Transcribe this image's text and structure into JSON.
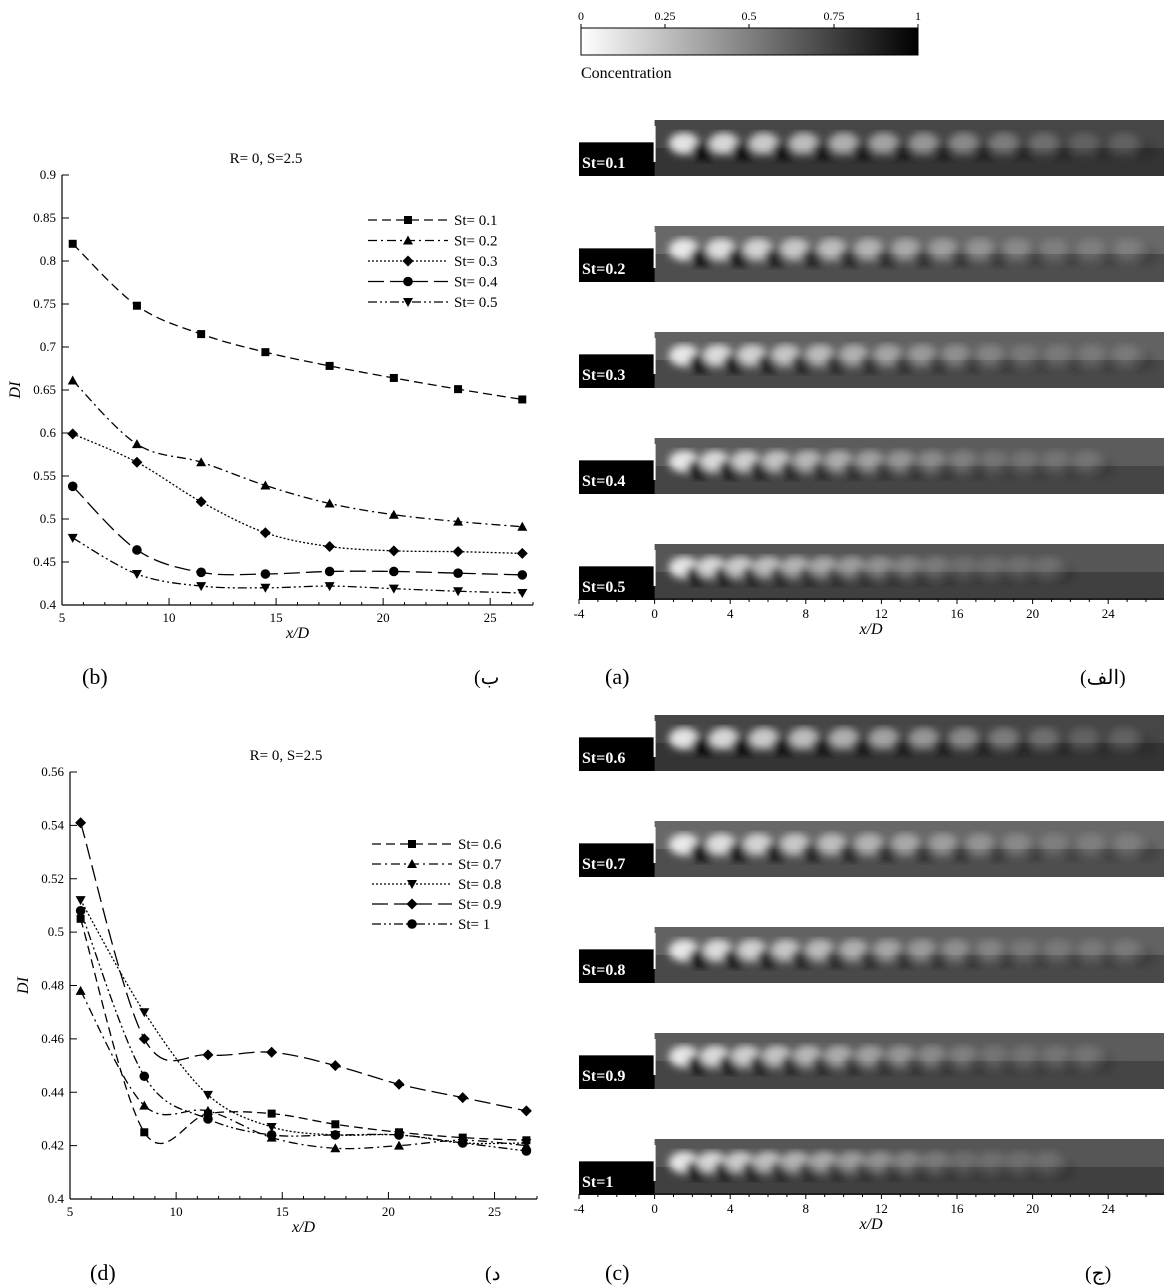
{
  "colorbar": {
    "ticks": [
      "0",
      "0.25",
      "0.5",
      "0.75",
      "1"
    ],
    "label": "Concentration"
  },
  "panel_labels": {
    "b": "(b)",
    "b_ar": "(ب",
    "a": "(a)",
    "a_ar": "(الف)",
    "d": "(d)",
    "d_ar": "(د",
    "c": "(c)",
    "c_ar": "(ج)"
  },
  "contour_axis": {
    "ticks": [
      "-4",
      "0",
      "4",
      "8",
      "12",
      "16",
      "20",
      "24"
    ],
    "xlabel": "x/D"
  },
  "contours_top": [
    "St=0.1",
    "St=0.2",
    "St=0.3",
    "St=0.4",
    "St=0.5"
  ],
  "contours_bottom": [
    "St=0.6",
    "St=0.7",
    "St=0.8",
    "St=0.9",
    "St=1"
  ],
  "chart_data": [
    {
      "type": "line",
      "title": "R= 0, S=2.5",
      "xlabel": "x/D",
      "ylabel": "DI",
      "xlim": [
        5,
        27
      ],
      "ylim": [
        0.4,
        0.9
      ],
      "x_ticks": [
        5,
        10,
        15,
        20,
        25
      ],
      "y_ticks": [
        "0.4",
        "0.45",
        "0.5",
        "0.55",
        "0.6",
        "0.65",
        "0.7",
        "0.75",
        "0.8",
        "0.85",
        "0.9"
      ],
      "x": [
        5.5,
        8.5,
        11.5,
        14.5,
        17.5,
        20.5,
        23.5,
        26.5
      ],
      "legend_position": "top-right",
      "series": [
        {
          "name": "St= 0.1",
          "marker": "square",
          "dash": "dashed",
          "values": [
            0.82,
            0.748,
            0.715,
            0.694,
            0.678,
            0.664,
            0.651,
            0.639
          ]
        },
        {
          "name": "St= 0.2",
          "marker": "triangle-up",
          "dash": "dashdot",
          "values": [
            0.661,
            0.587,
            0.566,
            0.539,
            0.518,
            0.505,
            0.497,
            0.491
          ]
        },
        {
          "name": "St= 0.3",
          "marker": "diamond",
          "dash": "dotted",
          "values": [
            0.599,
            0.566,
            0.52,
            0.484,
            0.468,
            0.463,
            0.462,
            0.46
          ]
        },
        {
          "name": "St= 0.4",
          "marker": "circle",
          "dash": "longdash",
          "values": [
            0.538,
            0.464,
            0.438,
            0.436,
            0.439,
            0.439,
            0.437,
            0.435
          ]
        },
        {
          "name": "St= 0.5",
          "marker": "triangle-down",
          "dash": "dashdotdot",
          "values": [
            0.478,
            0.436,
            0.422,
            0.42,
            0.422,
            0.419,
            0.416,
            0.414
          ]
        }
      ]
    },
    {
      "type": "line",
      "title": "R= 0, S=2.5",
      "xlabel": "x/D",
      "ylabel": "DI",
      "xlim": [
        5,
        27
      ],
      "ylim": [
        0.4,
        0.56
      ],
      "x_ticks": [
        5,
        10,
        15,
        20,
        25
      ],
      "y_ticks": [
        "0.4",
        "0.42",
        "0.44",
        "0.46",
        "0.48",
        "0.5",
        "0.52",
        "0.54",
        "0.56"
      ],
      "x": [
        5.5,
        8.5,
        11.5,
        14.5,
        17.5,
        20.5,
        23.5,
        26.5
      ],
      "legend_position": "top-right",
      "series": [
        {
          "name": "St= 0.6",
          "marker": "square",
          "dash": "dashed",
          "values": [
            0.505,
            0.425,
            0.432,
            0.432,
            0.428,
            0.425,
            0.423,
            0.422
          ]
        },
        {
          "name": "St= 0.7",
          "marker": "triangle-up",
          "dash": "dashdot",
          "values": [
            0.478,
            0.435,
            0.433,
            0.423,
            0.419,
            0.42,
            0.422,
            0.42
          ]
        },
        {
          "name": "St= 0.8",
          "marker": "triangle-down",
          "dash": "dotted",
          "values": [
            0.512,
            0.47,
            0.439,
            0.427,
            0.424,
            0.424,
            0.421,
            0.421
          ]
        },
        {
          "name": "St= 0.9",
          "marker": "diamond",
          "dash": "longdash",
          "values": [
            0.541,
            0.46,
            0.454,
            0.455,
            0.45,
            0.443,
            0.438,
            0.433
          ]
        },
        {
          "name": "St= 1",
          "marker": "circle",
          "dash": "dashdotdot",
          "values": [
            0.508,
            0.446,
            0.43,
            0.424,
            0.424,
            0.424,
            0.421,
            0.418
          ]
        }
      ]
    }
  ]
}
